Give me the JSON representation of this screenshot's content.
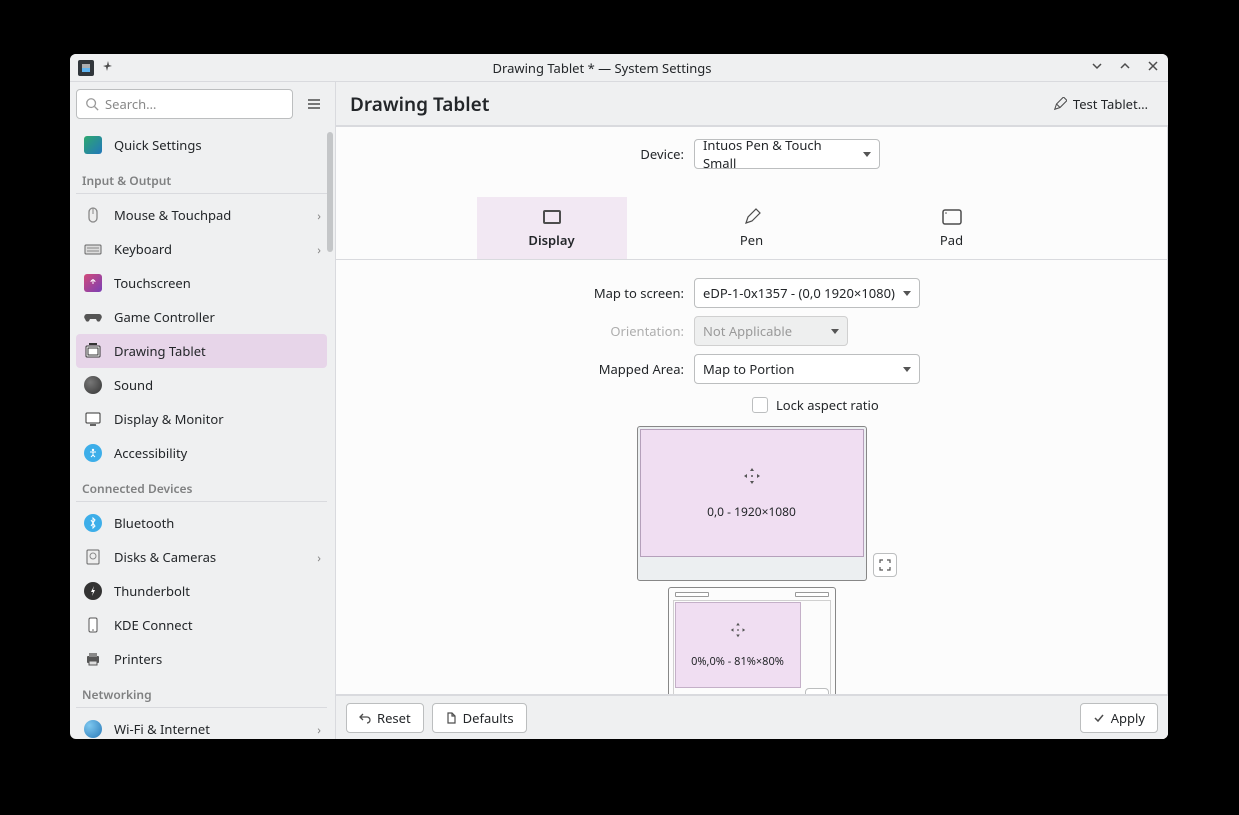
{
  "window": {
    "title": "Drawing Tablet * — System Settings"
  },
  "search": {
    "placeholder": "Search…"
  },
  "sidebar": {
    "top": {
      "label": "Quick Settings"
    },
    "sections": [
      {
        "label": "Input & Output",
        "items": [
          {
            "label": "Mouse & Touchpad",
            "chevron": true,
            "icon": "mouse"
          },
          {
            "label": "Keyboard",
            "chevron": true,
            "icon": "keyboard"
          },
          {
            "label": "Touchscreen",
            "chevron": false,
            "icon": "touch"
          },
          {
            "label": "Game Controller",
            "chevron": false,
            "icon": "gamepad"
          },
          {
            "label": "Drawing Tablet",
            "chevron": false,
            "icon": "tablet",
            "selected": true
          },
          {
            "label": "Sound",
            "chevron": false,
            "icon": "sound"
          },
          {
            "label": "Display & Monitor",
            "chevron": false,
            "icon": "display"
          },
          {
            "label": "Accessibility",
            "chevron": false,
            "icon": "a11y"
          }
        ]
      },
      {
        "label": "Connected Devices",
        "items": [
          {
            "label": "Bluetooth",
            "chevron": false,
            "icon": "bt"
          },
          {
            "label": "Disks & Cameras",
            "chevron": true,
            "icon": "disk"
          },
          {
            "label": "Thunderbolt",
            "chevron": false,
            "icon": "tb"
          },
          {
            "label": "KDE Connect",
            "chevron": false,
            "icon": "phone"
          },
          {
            "label": "Printers",
            "chevron": false,
            "icon": "printer"
          }
        ]
      },
      {
        "label": "Networking",
        "items": [
          {
            "label": "Wi-Fi & Internet",
            "chevron": true,
            "icon": "wifi"
          }
        ]
      }
    ]
  },
  "header": {
    "title": "Drawing Tablet",
    "test_label": "Test Tablet…"
  },
  "device": {
    "label": "Device:",
    "value": "Intuos Pen & Touch Small"
  },
  "tabs": {
    "display": "Display",
    "pen": "Pen",
    "pad": "Pad",
    "active": "display"
  },
  "map_to_screen": {
    "label": "Map to screen:",
    "value": "eDP-1-0x1357 - (0,0 1920×1080)"
  },
  "orientation": {
    "label": "Orientation:",
    "value": "Not Applicable",
    "disabled": true
  },
  "mapped_area": {
    "label": "Mapped Area:",
    "value": "Map to Portion"
  },
  "lock_aspect": {
    "label": "Lock aspect ratio",
    "checked": false
  },
  "screen_region": {
    "text": "0,0 - 1920×1080",
    "bg": "#f0def2",
    "border": "#878787"
  },
  "tablet_region": {
    "text": "0%,0% - 81%×80%",
    "bg": "#f0def2"
  },
  "footer": {
    "reset": "Reset",
    "defaults": "Defaults",
    "apply": "Apply"
  },
  "colors": {
    "selection": "#e7d5e9",
    "window_bg": "#eff0f1",
    "content_bg": "#fcfcfc",
    "border": "#bcbebf"
  }
}
